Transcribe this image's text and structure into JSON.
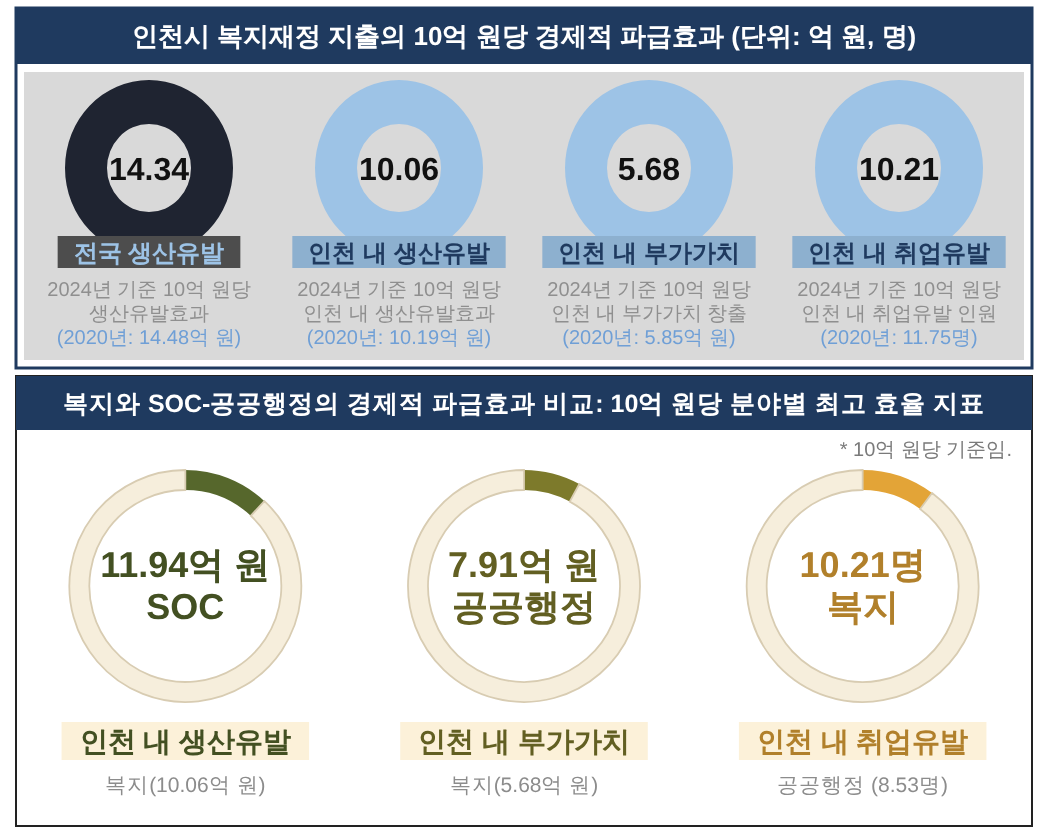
{
  "chart_data": [
    {
      "type": "other",
      "title": "인천시 복지재정 지출의 10억 원당 경제적 파급효과 (단위: 억 원, 명)",
      "categories": [
        "전국 생산유발",
        "인천 내 생산유발",
        "인천 내 부가가치",
        "인천 내 취업유발"
      ],
      "values": [
        14.34,
        10.06,
        5.68,
        10.21
      ],
      "data_labels": true,
      "colors": [
        "#1f2431",
        "#9dc3e6",
        "#9dc3e6",
        "#9dc3e6"
      ],
      "annotations": [
        "2024년 기준 10억 원당 생산유발효과",
        "(2020년: 14.48억 원)",
        "2024년 기준 10억 원당 인천 내 생산유발효과",
        "(2020년: 10.19억 원)",
        "2024년 기준 10억 원당 인천 내 부가가치 창출",
        "(2020년: 5.85억 원)",
        "2024년 기준 10억 원당 인천 내 취업유발 인원",
        "(2020년: 11.75명)"
      ]
    },
    {
      "type": "other",
      "title": "복지와 SOC-공공행정의 경제적 파급효과 비교: 10억 원당 분야별 최고 효율 지표",
      "annotations": [
        "* 10억 원당 기준임."
      ]
    },
    {
      "type": "donut",
      "title": "인천 내 생산유발",
      "categories": [
        "SOC",
        null
      ],
      "values": [
        11.94,
        88.06
      ],
      "value_labels": [
        "11.94억 원",
        null
      ],
      "colors": [
        "#56672c",
        "#f6eedc"
      ],
      "annotations": [
        "복지(10.06억 원)"
      ]
    },
    {
      "type": "donut",
      "title": "인천 내 부가가치",
      "categories": [
        "공공행정",
        null
      ],
      "values": [
        7.91,
        92.09
      ],
      "value_labels": [
        "7.91억 원",
        null
      ],
      "colors": [
        "#7d7a2b",
        "#f6eedc"
      ],
      "annotations": [
        "복지(5.68억 원)"
      ]
    },
    {
      "type": "donut",
      "title": "인천 내 취업유발",
      "categories": [
        "복지",
        null
      ],
      "values": [
        10.21,
        89.79
      ],
      "value_labels": [
        "10.21명",
        null
      ],
      "colors": [
        "#e3a437",
        "#f6eedc"
      ],
      "annotations": [
        "공공행정 (8.53명)"
      ]
    }
  ]
}
